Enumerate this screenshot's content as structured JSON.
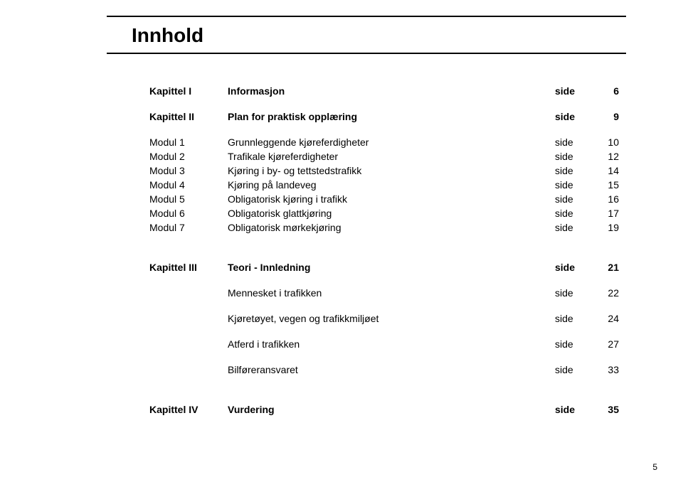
{
  "title": "Innhold",
  "sideWord": "side",
  "pageNumber": "5",
  "sections": {
    "kap1": {
      "label": "Kapittel I",
      "heading": "Informasjon",
      "page": "6"
    },
    "kap2": {
      "label": "Kapittel II",
      "heading": "Plan for praktisk opplæring",
      "page": "9"
    },
    "modules": [
      {
        "label": "Modul 1",
        "text": "Grunnleggende kjøreferdigheter",
        "page": "10"
      },
      {
        "label": "Modul 2",
        "text": "Trafikale kjøreferdigheter",
        "page": "12"
      },
      {
        "label": "Modul 3",
        "text": "Kjøring i by- og tettstedstrafikk",
        "page": "14"
      },
      {
        "label": "Modul 4",
        "text": "Kjøring på landeveg",
        "page": "15"
      },
      {
        "label": "Modul 5",
        "text": "Obligatorisk kjøring i trafikk",
        "page": "16"
      },
      {
        "label": "Modul 6",
        "text": "Obligatorisk glattkjøring",
        "page": "17"
      },
      {
        "label": "Modul 7",
        "text": "Obligatorisk mørkekjøring",
        "page": "19"
      }
    ],
    "kap3": {
      "label": "Kapittel III",
      "heading": "Teori - Innledning",
      "page": "21"
    },
    "subs": [
      {
        "text": "Mennesket i trafikken",
        "page": "22"
      },
      {
        "text": "Kjøretøyet, vegen og trafikkmiljøet",
        "page": "24"
      },
      {
        "text": "Atferd i trafikken",
        "page": "27"
      },
      {
        "text": "Bilføreransvaret",
        "page": "33"
      }
    ],
    "kap4": {
      "label": "Kapittel IV",
      "heading": "Vurdering",
      "page": "35"
    }
  }
}
